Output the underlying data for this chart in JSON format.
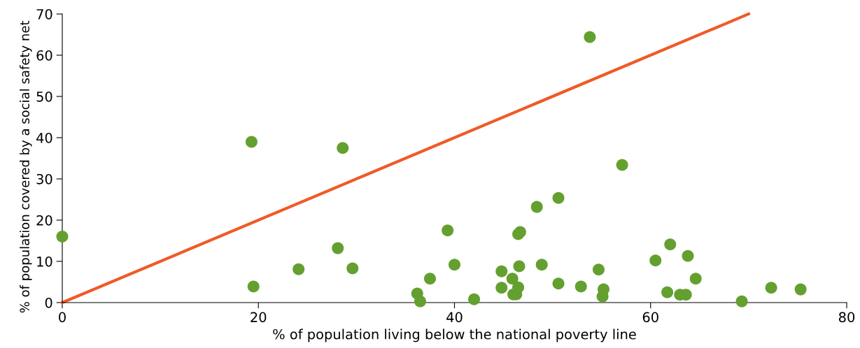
{
  "chart_data": {
    "type": "scatter",
    "xlabel": "% of population living below the national poverty line",
    "ylabel": "% of population covered by a social safety net",
    "xlim": [
      0,
      80
    ],
    "ylim": [
      0,
      70
    ],
    "xticks": [
      0,
      20,
      40,
      60,
      80
    ],
    "yticks": [
      0,
      10,
      20,
      30,
      40,
      50,
      60,
      70
    ],
    "grid": false,
    "series": [
      {
        "type": "line",
        "marker": "none",
        "color": "#f05a28",
        "x": [
          0,
          70
        ],
        "values": [
          0,
          70
        ]
      },
      {
        "marker": "circle",
        "color": "#64a030",
        "x": [
          0,
          19.3,
          19.5,
          24.1,
          28.1,
          28.6,
          29.6,
          36.2,
          36.5,
          37.5,
          39.3,
          40.0,
          42.0,
          44.8,
          44.8,
          45.9,
          46.0,
          46.3,
          46.5,
          46.5,
          46.7,
          46.6,
          48.4,
          48.9,
          50.6,
          50.6,
          52.9,
          53.8,
          54.7,
          55.2,
          55.1,
          57.1,
          60.5,
          61.7,
          62.0,
          63.0,
          63.6,
          63.8,
          64.6,
          69.3,
          72.3,
          75.3
        ],
        "values": [
          16,
          39,
          3.9,
          8.1,
          13.2,
          37.5,
          8.3,
          2.2,
          0.3,
          5.8,
          17.5,
          9.2,
          0.8,
          7.6,
          3.6,
          5.8,
          2.0,
          2.0,
          3.7,
          16.6,
          17.1,
          8.8,
          23.2,
          9.2,
          4.6,
          25.4,
          3.9,
          64.4,
          8.0,
          3.2,
          1.5,
          33.4,
          10.2,
          2.5,
          14.1,
          1.9,
          1.9,
          11.3,
          5.8,
          0.3,
          3.6,
          3.2
        ]
      }
    ]
  }
}
